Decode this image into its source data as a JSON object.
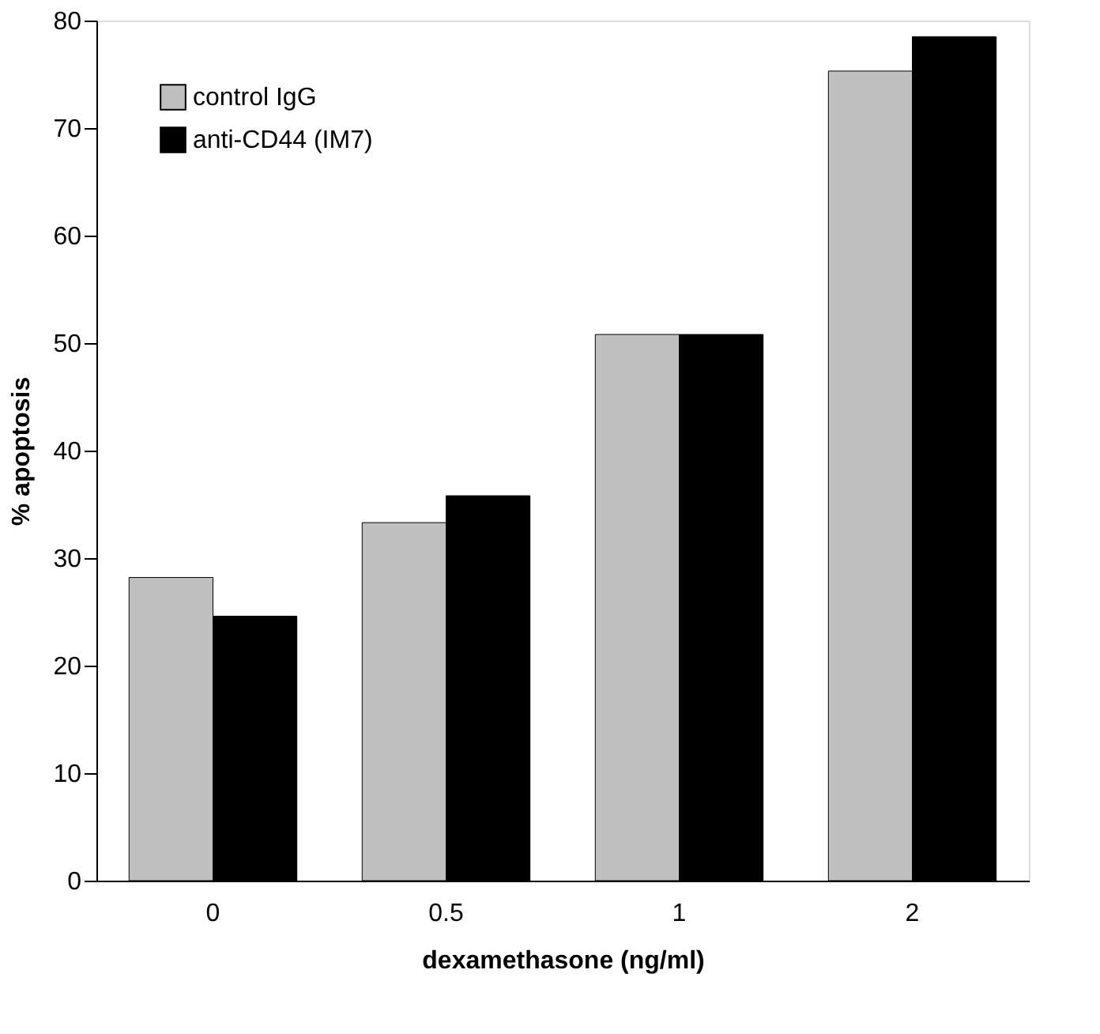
{
  "chart_data": {
    "type": "bar",
    "xlabel": "dexamethasone (ng/ml)",
    "ylabel": "% apoptosis",
    "categories": [
      "0",
      "0.5",
      "1",
      "2"
    ],
    "series": [
      {
        "name": "control IgG",
        "color": "#c0c0c0",
        "values": [
          28.2,
          33.3,
          50.8,
          75.3
        ]
      },
      {
        "name": "anti-CD44 (IM7)",
        "color": "#000000",
        "values": [
          24.6,
          35.8,
          50.8,
          78.5
        ]
      }
    ],
    "ylim": [
      0,
      80
    ],
    "yticks": [
      0,
      10,
      20,
      30,
      40,
      50,
      60,
      70,
      80
    ],
    "grid": false,
    "legend": "top left"
  }
}
